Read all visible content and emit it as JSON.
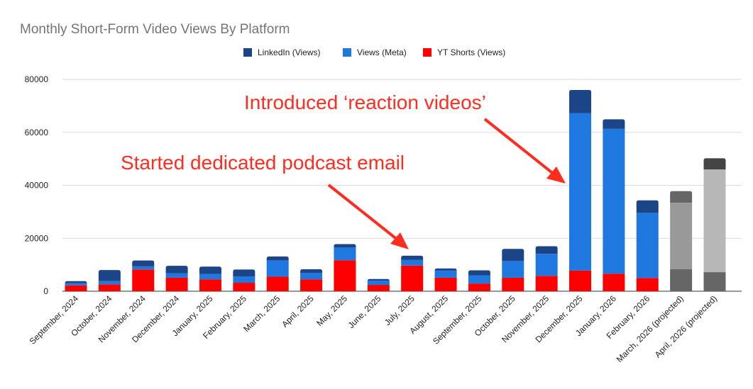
{
  "chart_data": {
    "type": "bar",
    "stacked": true,
    "title": "Monthly Short-Form Video Views By Platform",
    "xlabel": "",
    "ylabel": "",
    "ylim": [
      0,
      80000
    ],
    "yticks": [
      "0",
      "20000",
      "40000",
      "60000",
      "80000"
    ],
    "ytick_values": [
      0,
      20000,
      40000,
      60000,
      80000
    ],
    "grid": true,
    "legend_position": "top",
    "categories": [
      "September, 2024",
      "October, 2024",
      "November, 2024",
      "December, 2024",
      "January, 2025",
      "February, 2025",
      "March, 2025",
      "April, 2025",
      "May, 2025",
      "June, 2025",
      "July, 2025",
      "August, 2025",
      "September, 2025",
      "October, 2025",
      "November, 2025",
      "December, 2025",
      "January, 2026",
      "February, 2026",
      "March, 2026 (projected)",
      "April, 2026 (projected)"
    ],
    "series": [
      {
        "name": "YT Shorts (Views)",
        "color": "#ff0000",
        "values": [
          2200,
          2600,
          8200,
          5100,
          4500,
          3200,
          5500,
          4500,
          11700,
          2400,
          9700,
          5100,
          2900,
          5100,
          5800,
          7800,
          6600,
          5000,
          8300,
          7200
        ]
      },
      {
        "name": "Views (Meta)",
        "color": "#1f77e0",
        "values": [
          800,
          1200,
          1200,
          1700,
          2000,
          2400,
          6100,
          2400,
          4800,
          1600,
          2100,
          2700,
          3100,
          6300,
          8300,
          59500,
          54700,
          24600,
          25100,
          38800
        ]
      },
      {
        "name": "LinkedIn (Views)",
        "color": "#1c4587",
        "values": [
          800,
          4200,
          2200,
          2800,
          2800,
          2600,
          1500,
          1400,
          1300,
          600,
          1600,
          800,
          1900,
          4600,
          2900,
          8700,
          3600,
          4700,
          4400,
          4200
        ]
      }
    ],
    "legend_order": [
      2,
      1,
      0
    ],
    "projected_colors": {
      "March, 2026 (projected)": [
        "#666666",
        "#999999",
        "#666666"
      ],
      "April, 2026 (projected)": [
        "#666666",
        "#b7b7b7",
        "#444444"
      ]
    },
    "annotations": [
      {
        "text": "Introduced ‘reaction videos’",
        "points_to": "December, 2025"
      },
      {
        "text": "Started dedicated podcast email",
        "points_to": "July, 2025"
      }
    ]
  }
}
